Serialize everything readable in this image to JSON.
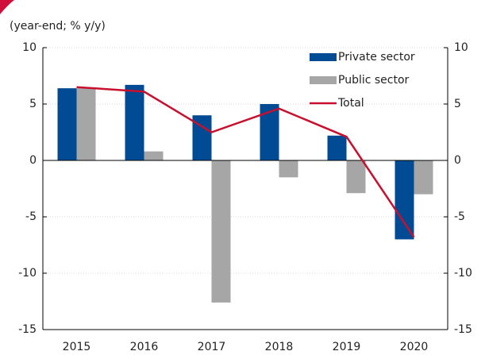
{
  "chart_data": {
    "type": "bar",
    "subtitle": "(year-end; % y/y)",
    "categories": [
      "2015",
      "2016",
      "2017",
      "2018",
      "2019",
      "2020"
    ],
    "series": [
      {
        "name": "Private sector",
        "color": "#004b93",
        "values": [
          6.4,
          6.7,
          4.0,
          5.0,
          2.2,
          -7.0
        ]
      },
      {
        "name": "Public sector",
        "color": "#a6a6a6",
        "values": [
          6.4,
          0.8,
          -12.6,
          -1.5,
          -2.9,
          -3.0
        ]
      },
      {
        "name": "Total",
        "type": "line",
        "color": "#c8102e",
        "values": [
          6.5,
          6.1,
          2.5,
          4.6,
          2.1,
          -6.8
        ]
      }
    ],
    "ylim": [
      -15,
      10
    ],
    "yticks": [
      10,
      5,
      0,
      -5,
      -10,
      -15
    ],
    "y2lim": [
      -15,
      10
    ],
    "y2ticks": [
      10,
      5,
      0,
      -5,
      -10,
      -15
    ],
    "grid": true,
    "legend": "top-right"
  }
}
